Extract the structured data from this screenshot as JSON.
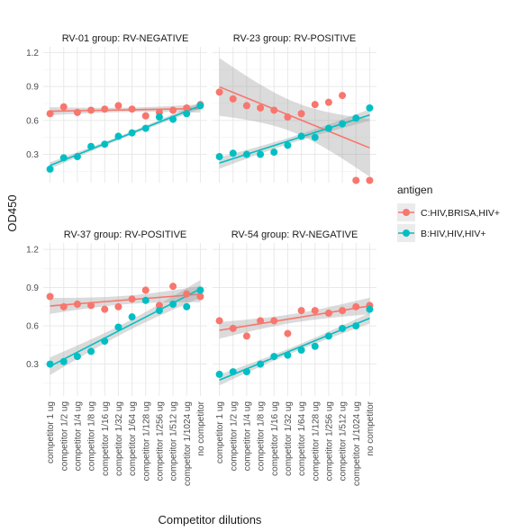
{
  "chart_data": {
    "type": "scatter",
    "xlabel": "Competitor dilutions",
    "ylabel": "OD450",
    "ylim": [
      0.05,
      1.25
    ],
    "yticks": [
      0.3,
      0.6,
      0.9,
      1.2
    ],
    "grid": true,
    "legend": {
      "title": "antigen",
      "position": "right",
      "entries": [
        {
          "label": "C:HIV,BRISA,HIV+",
          "color": "#F8766D"
        },
        {
          "label": "B:HIV,HIV,HIV+",
          "color": "#00BFC4"
        }
      ]
    },
    "trend": "linear fit with confidence band",
    "categories": [
      "competitor 1 ug",
      "competitor 1/2 ug",
      "competitor 1/4 ug",
      "competitor 1/8 ug",
      "competitor 1/16 ug",
      "competitor 1/32 ug",
      "competitor 1/64 ug",
      "competitor 1/128 ug",
      "competitor 1/256 ug",
      "competitor 1/512 ug",
      "competitor 1/1024 ug",
      "no competitor"
    ],
    "panels": [
      {
        "title": "RV-01 group: RV-NEGATIVE",
        "series": [
          {
            "name": "C:HIV,BRISA,HIV+",
            "values": [
              0.66,
              0.72,
              0.67,
              0.69,
              0.7,
              0.73,
              0.7,
              0.64,
              0.67,
              0.69,
              0.71,
              0.74
            ]
          },
          {
            "name": "B:HIV,HIV,HIV+",
            "values": [
              0.17,
              0.27,
              0.28,
              0.37,
              0.39,
              0.46,
              0.49,
              0.53,
              0.63,
              0.61,
              0.66,
              0.73
            ]
          }
        ]
      },
      {
        "title": "RV-23 group: RV-POSITIVE",
        "series": [
          {
            "name": "C:HIV,BRISA,HIV+",
            "values": [
              0.85,
              0.79,
              0.73,
              0.71,
              0.69,
              0.63,
              0.66,
              0.74,
              0.76,
              0.82,
              0.07,
              0.07
            ]
          },
          {
            "name": "B:HIV,HIV,HIV+",
            "values": [
              0.28,
              0.31,
              0.3,
              0.3,
              0.32,
              0.38,
              0.46,
              0.45,
              0.53,
              0.57,
              0.62,
              0.71
            ]
          }
        ]
      },
      {
        "title": "RV-37 group: RV-POSITIVE",
        "series": [
          {
            "name": "C:HIV,BRISA,HIV+",
            "values": [
              0.83,
              0.75,
              0.77,
              0.76,
              0.73,
              0.75,
              0.81,
              0.88,
              0.76,
              0.91,
              0.85,
              0.83
            ]
          },
          {
            "name": "B:HIV,HIV,HIV+",
            "values": [
              0.3,
              0.32,
              0.36,
              0.4,
              0.48,
              0.59,
              0.67,
              0.8,
              0.72,
              0.77,
              0.75,
              0.88
            ]
          }
        ]
      },
      {
        "title": "RV-54 group: RV-NEGATIVE",
        "series": [
          {
            "name": "C:HIV,BRISA,HIV+",
            "values": [
              0.64,
              0.58,
              0.52,
              0.64,
              0.64,
              0.54,
              0.72,
              0.72,
              0.7,
              0.72,
              0.75,
              0.76
            ]
          },
          {
            "name": "B:HIV,HIV,HIV+",
            "values": [
              0.22,
              0.24,
              0.24,
              0.3,
              0.36,
              0.37,
              0.41,
              0.44,
              0.52,
              0.58,
              0.6,
              0.73
            ]
          }
        ]
      }
    ]
  }
}
